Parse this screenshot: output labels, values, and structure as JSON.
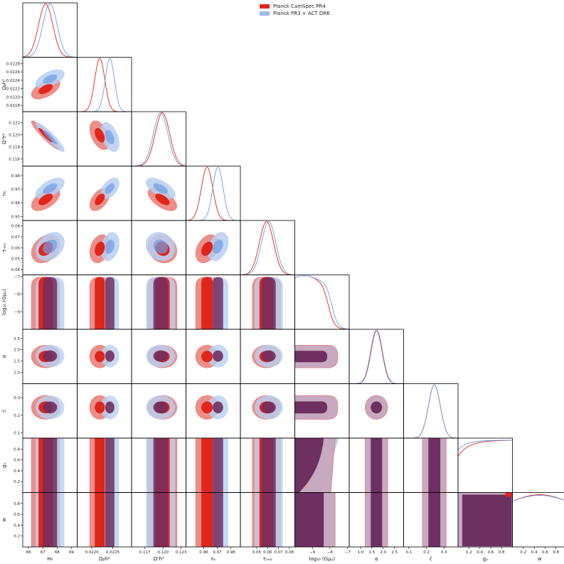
{
  "chart_data": {
    "type": "triangle",
    "legend": [
      {
        "name": "Planck CamSpec PR4",
        "color": "#e0251b",
        "light": "#ec8f88"
      },
      {
        "name": "Planck PR3 + ACT DR6",
        "color": "#6f9de6",
        "light": "#b8cff2"
      }
    ],
    "overlap_color": "#6e2f61",
    "overlap_light": "#c7a9c0",
    "parameters": [
      {
        "label": "H₀",
        "range": [
          65.6,
          69.4
        ],
        "ticks": [
          66,
          67,
          68,
          69
        ],
        "tick_labels": [
          "66",
          "67",
          "68",
          "69"
        ],
        "mean": [
          67.2,
          67.5
        ],
        "sigma": [
          0.5,
          0.5
        ],
        "dist": "gauss"
      },
      {
        "label": "Ωᵦh²",
        "range": [
          0.02165,
          0.02295
        ],
        "ticks": [
          0.0218,
          0.022,
          0.0222,
          0.0224,
          0.0226,
          0.0228
        ],
        "tick_labels": [
          "0.0218",
          "0.0220",
          "0.0222",
          "0.0224",
          "0.0226",
          "0.0228"
        ],
        "xticks": [
          0.022,
          0.0225
        ],
        "xtick_labels": [
          "0.0220",
          "0.0225"
        ],
        "mean": [
          0.02219,
          0.02243
        ],
        "sigma": [
          0.00012,
          0.00011
        ],
        "dist": "gauss"
      },
      {
        "label": "Ωᶜh²",
        "range": [
          0.1148,
          0.1238
        ],
        "ticks": [
          0.116,
          0.118,
          0.12,
          0.122
        ],
        "tick_labels": [
          "0.116",
          "0.118",
          "0.120",
          "0.122"
        ],
        "xticks": [
          0.117,
          0.12,
          0.123
        ],
        "xtick_labels": [
          "0.117",
          "0.120",
          "0.123"
        ],
        "mean": [
          0.1199,
          0.1196
        ],
        "sigma": [
          0.0012,
          0.0012
        ],
        "dist": "gauss"
      },
      {
        "label": "nₛ",
        "range": [
          0.947,
          0.987
        ],
        "ticks": [
          0.95,
          0.96,
          0.97,
          0.98
        ],
        "tick_labels": [
          "0.95",
          "0.96",
          "0.97",
          "0.98"
        ],
        "xticks": [
          0.96,
          0.97,
          0.98
        ],
        "xtick_labels": [
          "0.96",
          "0.97",
          "0.98"
        ],
        "mean": [
          0.9625,
          0.9705
        ],
        "sigma": [
          0.0042,
          0.0038
        ],
        "dist": "gauss"
      },
      {
        "label": "τᵣₑᵢₒ",
        "range": [
          0.035,
          0.085
        ],
        "ticks": [
          0.04,
          0.05,
          0.06,
          0.07,
          0.08
        ],
        "tick_labels": [
          "0.04",
          "0.05",
          "0.06",
          "0.07",
          "0.08"
        ],
        "xticks": [
          0.05,
          0.06,
          0.07,
          0.08
        ],
        "xtick_labels": [
          "0.05",
          "0.06",
          "0.07",
          "0.08"
        ],
        "mean": [
          0.059,
          0.061
        ],
        "sigma": [
          0.0065,
          0.0065
        ],
        "dist": "gauss"
      },
      {
        "label": "log₁₀ (Gμᵤ)",
        "range": [
          -10.0,
          -6.9
        ],
        "ticks": [
          -9,
          -8,
          -7
        ],
        "tick_labels": [
          "−9",
          "−8",
          "−7"
        ],
        "dist": "plateau",
        "edge": [
          -8.1,
          -7.9
        ]
      },
      {
        "label": "α",
        "range": [
          0.5,
          2.9
        ],
        "ticks": [
          1.0,
          1.5,
          2.0,
          2.5
        ],
        "tick_labels": [
          "1.0",
          "1.5",
          "2.0",
          "2.5"
        ],
        "mean": [
          1.7,
          1.72
        ],
        "sigma": [
          0.25,
          0.25
        ],
        "dist": "gauss"
      },
      {
        "label": "č",
        "range": [
          0.07,
          0.38
        ],
        "ticks": [
          0.1,
          0.2,
          0.3
        ],
        "tick_labels": [
          "0.1",
          "0.2",
          "0.3"
        ],
        "mean": [
          0.245,
          0.245
        ],
        "sigma": [
          0.034,
          0.034
        ],
        "dist": "gauss"
      },
      {
        "label": "gᵤ",
        "range": [
          0.0,
          1.0
        ],
        "ticks": [
          0.2,
          0.4,
          0.6,
          0.8
        ],
        "tick_labels": [
          "0.2",
          "0.4",
          "0.6",
          "0.8"
        ],
        "dist": "flat"
      },
      {
        "label": "w",
        "range": [
          0.0,
          1.0
        ],
        "ticks": [
          0.2,
          0.4,
          0.6,
          0.8
        ],
        "tick_labels": [
          "0.2",
          "0.4",
          "0.6",
          "0.8"
        ],
        "dist": "flat"
      }
    ],
    "correlations": [
      {
        "i": 1,
        "j": 0,
        "rho": [
          0.55,
          0.55
        ]
      },
      {
        "i": 2,
        "j": 0,
        "rho": [
          -0.93,
          -0.92
        ]
      },
      {
        "i": 2,
        "j": 1,
        "rho": [
          -0.45,
          -0.45
        ]
      },
      {
        "i": 3,
        "j": 0,
        "rho": [
          0.55,
          0.6
        ]
      },
      {
        "i": 3,
        "j": 1,
        "rho": [
          0.5,
          0.5
        ]
      },
      {
        "i": 3,
        "j": 2,
        "rho": [
          -0.6,
          -0.6
        ]
      },
      {
        "i": 4,
        "j": 0,
        "rho": [
          0.3,
          0.3
        ]
      },
      {
        "i": 4,
        "j": 1,
        "rho": [
          0.25,
          0.25
        ]
      },
      {
        "i": 4,
        "j": 2,
        "rho": [
          -0.15,
          -0.15
        ]
      },
      {
        "i": 4,
        "j": 3,
        "rho": [
          0.35,
          0.35
        ]
      }
    ]
  }
}
